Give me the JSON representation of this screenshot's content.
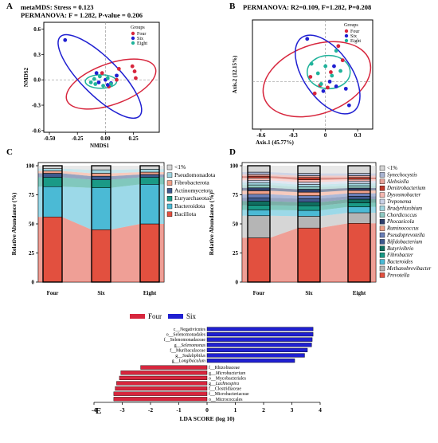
{
  "chart_data": [
    {
      "panel": "A",
      "type": "scatter",
      "title_lines": [
        "metaMDS: Stress = 0.123",
        "PERMANOVA: F = 1.282, P-value = 0.206"
      ],
      "xlabel": "NMDS1",
      "ylabel": "NMDS2",
      "xlim": [
        -0.55,
        0.48
      ],
      "ylim": [
        -0.62,
        0.68
      ],
      "xticks": [
        -0.5,
        -0.25,
        0.0,
        0.25
      ],
      "xtick_labels": [
        "-0.50",
        "-0.25",
        "0.00",
        "0.25"
      ],
      "yticks": [
        -0.6,
        -0.3,
        0.0,
        0.3,
        0.6
      ],
      "ytick_labels": [
        "-0.6",
        "-0.3",
        "0.0",
        "0.3",
        "0.6"
      ],
      "legend_title": "Groups",
      "legend_position": "top-right",
      "series": [
        {
          "name": "Four",
          "color": "#d7263d",
          "points": [
            [
              0.24,
              0.16
            ],
            [
              0.26,
              0.1
            ],
            [
              0.27,
              0.02
            ],
            [
              0.12,
              0.13
            ],
            [
              -0.03,
              0.08
            ],
            [
              0.1,
              0.0
            ],
            [
              0.03,
              -0.08
            ]
          ]
        },
        {
          "name": "Six",
          "color": "#1f1fd1",
          "points": [
            [
              -0.36,
              0.47
            ],
            [
              -0.08,
              0.08
            ],
            [
              0.0,
              0.0
            ],
            [
              -0.06,
              -0.03
            ],
            [
              0.02,
              -0.06
            ],
            [
              0.1,
              0.05
            ],
            [
              0.05,
              -0.04
            ]
          ]
        },
        {
          "name": "Eight",
          "color": "#20b39b",
          "points": [
            [
              -0.13,
              -0.03
            ],
            [
              -0.1,
              0.01
            ],
            [
              -0.05,
              0.04
            ],
            [
              0.02,
              0.02
            ],
            [
              -0.02,
              -0.07
            ],
            [
              0.05,
              -0.05
            ],
            [
              -0.09,
              -0.05
            ]
          ]
        }
      ],
      "ellipses": [
        {
          "group": "Four",
          "cx": 0.05,
          "cy": -0.05,
          "rx": 0.42,
          "ry": 0.24,
          "angle": 20
        },
        {
          "group": "Six",
          "cx": -0.05,
          "cy": 0.04,
          "rx": 0.5,
          "ry": 0.22,
          "angle": -45
        },
        {
          "group": "Eight",
          "cx": -0.04,
          "cy": -0.02,
          "rx": 0.14,
          "ry": 0.08,
          "angle": 0
        }
      ]
    },
    {
      "panel": "B",
      "type": "scatter",
      "title_lines": [
        "PERMANOVA:  R2=0.109, F=1.282, P=0.208"
      ],
      "xlabel": "Axis.1 (45.77%)",
      "ylabel": "Axis.2 (12.15%)",
      "xlim": [
        -0.68,
        0.44
      ],
      "ylim": [
        -0.4,
        0.52
      ],
      "xticks": [
        -0.6,
        -0.3,
        0.0,
        0.3
      ],
      "xtick_labels": [
        "-0.6",
        "-0.3",
        "0",
        "0.3"
      ],
      "legend_title": "Groups",
      "legend_position": "top-right",
      "series": [
        {
          "name": "Four",
          "color": "#d7263d",
          "points": [
            [
              0.12,
              0.3
            ],
            [
              0.16,
              0.18
            ],
            [
              -0.14,
              0.04
            ],
            [
              -0.05,
              -0.03
            ],
            [
              0.05,
              0.08
            ],
            [
              0.02,
              -0.05
            ],
            [
              -0.1,
              -0.1
            ]
          ]
        },
        {
          "name": "Six",
          "color": "#1f1fd1",
          "points": [
            [
              -0.17,
              0.36
            ],
            [
              0.08,
              0.13
            ],
            [
              0.19,
              -0.06
            ],
            [
              -0.02,
              -0.08
            ],
            [
              0.04,
              0.0
            ],
            [
              0.22,
              -0.2
            ],
            [
              0.1,
              -0.04
            ]
          ]
        },
        {
          "name": "Eight",
          "color": "#20b39b",
          "points": [
            [
              0.1,
              0.26
            ],
            [
              -0.13,
              0.15
            ],
            [
              -0.07,
              0.07
            ],
            [
              0.0,
              0.13
            ],
            [
              0.06,
              0.05
            ],
            [
              -0.04,
              -0.02
            ],
            [
              0.14,
              0.09
            ]
          ]
        }
      ],
      "ellipses": [
        {
          "group": "Four",
          "cx": -0.08,
          "cy": 0.02,
          "rx": 0.52,
          "ry": 0.29,
          "angle": 20
        },
        {
          "group": "Six",
          "cx": 0.02,
          "cy": 0.06,
          "rx": 0.42,
          "ry": 0.2,
          "angle": -55
        },
        {
          "group": "Eight",
          "cx": 0.03,
          "cy": 0.08,
          "rx": 0.2,
          "ry": 0.14,
          "angle": 0
        }
      ]
    },
    {
      "panel": "C",
      "type": "bar",
      "stacked": true,
      "ylabel": "Relative Abundance (%)",
      "ylim": [
        0,
        100
      ],
      "yticks": [
        0,
        25,
        50,
        75,
        100
      ],
      "categories": [
        "Four",
        "Six",
        "Eight"
      ],
      "series": [
        {
          "name": "Bacillota",
          "color": "#e2503f",
          "values": [
            56,
            45,
            50
          ]
        },
        {
          "name": "Bacteroidota",
          "color": "#4bbad5",
          "values": [
            26,
            36,
            34
          ]
        },
        {
          "name": "Euryarchaeota",
          "color": "#1a9a86",
          "values": [
            8,
            7,
            6
          ]
        },
        {
          "name": "Actinomycetota",
          "color": "#3f5a8e",
          "values": [
            3.5,
            3,
            2.5
          ]
        },
        {
          "name": "Fibrobacterota",
          "color": "#f0a088",
          "values": [
            2,
            2.5,
            2
          ]
        },
        {
          "name": "Pseudomonadota",
          "color": "#9fd4df",
          "values": [
            2,
            3,
            2.5
          ]
        },
        {
          "name": "<1%",
          "color": "#d6d6d6",
          "values": [
            2.5,
            3.5,
            3
          ]
        }
      ],
      "legend_order": [
        "<1%",
        "Pseudomonadota",
        "Fibrobacterota",
        "Actinomycetota",
        "Euryarchaeota",
        "Bacteroidota",
        "Bacillota"
      ]
    },
    {
      "panel": "D",
      "type": "bar",
      "stacked": true,
      "ylabel": "Relative Abundance (%)",
      "ylim": [
        0,
        100
      ],
      "yticks": [
        0,
        25,
        50,
        75,
        100
      ],
      "categories": [
        "Four",
        "Six",
        "Eight"
      ],
      "series": [
        {
          "name": "Prevotella",
          "color": "#e2503f",
          "values": [
            38,
            46,
            50
          ]
        },
        {
          "name": "Methanobrevibacter",
          "color": "#b5b5b5",
          "values": [
            19,
            10,
            9
          ]
        },
        {
          "name": "Bacteroides",
          "color": "#4bbad5",
          "values": [
            5,
            5,
            5
          ]
        },
        {
          "name": "Fibrobacter",
          "color": "#1a9a86",
          "values": [
            4,
            4,
            3.5
          ]
        },
        {
          "name": "Butyrivibrio",
          "color": "#0f6e5f",
          "values": [
            3.5,
            3,
            3
          ]
        },
        {
          "name": "Bifidobacterium",
          "color": "#3f5a8e",
          "values": [
            3,
            3,
            2.5
          ]
        },
        {
          "name": "Pseudoprevotella",
          "color": "#6a7fb8",
          "values": [
            3,
            2.5,
            2.5
          ]
        },
        {
          "name": "Ruminococcus",
          "color": "#f0a088",
          "values": [
            3,
            3,
            2.5
          ]
        },
        {
          "name": "Phocaeicola",
          "color": "#2f3f6a",
          "values": [
            2.5,
            2.5,
            2
          ]
        },
        {
          "name": "Chordicoccus",
          "color": "#8ec9c2",
          "values": [
            2.5,
            2,
            2
          ]
        },
        {
          "name": "Bradyrhizobium",
          "color": "#9fd4df",
          "values": [
            2,
            2,
            2
          ]
        },
        {
          "name": "Treponema",
          "color": "#c9d1e6",
          "values": [
            2,
            2,
            2
          ]
        },
        {
          "name": "Dysosmobacter",
          "color": "#f5b7b0",
          "values": [
            2,
            2,
            1.5
          ]
        },
        {
          "name": "Denitrobacterium",
          "color": "#c0392b",
          "values": [
            1.5,
            2,
            1.5
          ]
        },
        {
          "name": "Alebsiella",
          "color": "#e7a39a",
          "values": [
            1.5,
            1.5,
            1.5
          ]
        },
        {
          "name": "Synechocystis",
          "color": "#a8b3d1",
          "values": [
            2,
            2,
            2
          ]
        },
        {
          "name": "<1%",
          "color": "#d6d6d6",
          "values": [
            5.5,
            6.5,
            6.5
          ]
        }
      ],
      "legend_order": [
        "<1%",
        "Synechocystis",
        "Alebsiella",
        "Denitrobacterium",
        "Dysosmobacter",
        "Treponema",
        "Bradyrhizobium",
        "Chordicoccus",
        "Phocaeicola",
        "Ruminococcus",
        "Pseudoprevotella",
        "Bifidobacterium",
        "Butyrivibrio",
        "Fibrobacter",
        "Bacteroides",
        "Methanobrevibacter",
        "Prevotella"
      ]
    },
    {
      "panel": "E",
      "type": "bar",
      "orientation": "horizontal",
      "xlabel": "LDA SCORE (log 10)",
      "xlim": [
        -4,
        4
      ],
      "xticks": [
        -4,
        -3,
        -2,
        -1,
        0,
        1,
        2,
        3,
        4
      ],
      "legend_position": "top-left",
      "series": [
        {
          "name": "Four",
          "color": "#d7263d"
        },
        {
          "name": "Six",
          "color": "#1f1fd1"
        }
      ],
      "bars": [
        {
          "label": "c__Negativicutes",
          "value": 3.75,
          "group": "Six",
          "italic": false
        },
        {
          "label": "o__Selenomonadales",
          "value": 3.75,
          "group": "Six",
          "italic": false
        },
        {
          "label": "f__Selenomonadaceae",
          "value": 3.72,
          "group": "Six",
          "italic": false
        },
        {
          "label": "g__Selenomonas",
          "value": 3.7,
          "group": "Six",
          "italic": true
        },
        {
          "label": "f__Muribaculaceae",
          "value": 3.55,
          "group": "Six",
          "italic": false
        },
        {
          "label": "g__Sodaliphilus",
          "value": 3.45,
          "group": "Six",
          "italic": true
        },
        {
          "label": "g__Longibaculum",
          "value": 3.1,
          "group": "Six",
          "italic": true
        },
        {
          "label": "f__Rhizobiaceae",
          "value": -2.35,
          "group": "Four",
          "italic": false
        },
        {
          "label": "g__Microbacterium",
          "value": -3.05,
          "group": "Four",
          "italic": true
        },
        {
          "label": "o__Mycobacteriales",
          "value": -3.1,
          "group": "Four",
          "italic": false
        },
        {
          "label": "g__Lachnospira",
          "value": -3.2,
          "group": "Four",
          "italic": true
        },
        {
          "label": "f__Clostridiaceae",
          "value": -3.25,
          "group": "Four",
          "italic": false
        },
        {
          "label": "f__Microbacteriaceae",
          "value": -3.3,
          "group": "Four",
          "italic": false
        },
        {
          "label": "o__Micrococcales",
          "value": -3.3,
          "group": "Four",
          "italic": false
        }
      ]
    }
  ]
}
